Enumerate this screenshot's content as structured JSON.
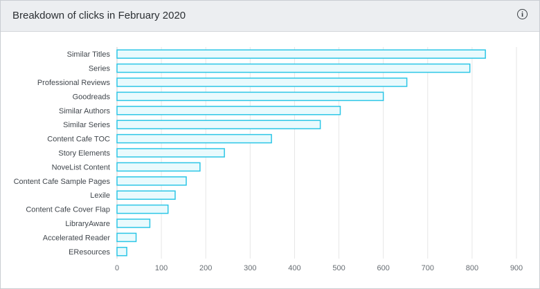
{
  "panel": {
    "title": "Breakdown of clicks in February 2020",
    "info_icon": "info-icon",
    "info_glyph": "i"
  },
  "chart_data": {
    "type": "bar",
    "orientation": "horizontal",
    "categories": [
      "Similar Titles",
      "Series",
      "Professional Reviews",
      "Goodreads",
      "Similar Authors",
      "Similar Series",
      "Content Cafe TOC",
      "Story Elements",
      "NoveList Content",
      "Content Cafe Sample Pages",
      "Lexile",
      "Content Cafe Cover Flap",
      "LibraryAware",
      "Accelerated Reader",
      "EResources"
    ],
    "values": [
      830,
      795,
      653,
      600,
      503,
      458,
      348,
      242,
      187,
      156,
      131,
      115,
      74,
      43,
      22
    ],
    "xlim": [
      0,
      900
    ],
    "xticks": [
      0,
      100,
      200,
      300,
      400,
      500,
      600,
      700,
      800,
      900
    ],
    "grid": "vertical",
    "colors": {
      "bar_fill": "#e9fafd",
      "bar_stroke": "#2cc6e6",
      "grid": "#e6e6e6",
      "axis": "#cccccc"
    },
    "title": "Breakdown of clicks in February 2020"
  }
}
